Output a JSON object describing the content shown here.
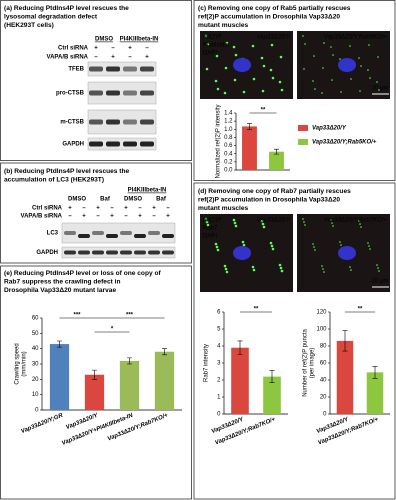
{
  "panels": {
    "a": {
      "title": [
        "(a) Reducing PtdIns4P level rescues the",
        "lysosomal degradation defect",
        "(HEK293T cells)"
      ],
      "columns": [
        "DMSO",
        "PI4KIIIbeta-IN"
      ],
      "rows": [
        {
          "label": "Ctrl siRNA",
          "signs": [
            "+",
            "–",
            "+",
            "–"
          ]
        },
        {
          "label": "VAPA/B siRNA",
          "signs": [
            "–",
            "+",
            "–",
            "+"
          ]
        }
      ],
      "blots": [
        "TFEB",
        "pro-CTSB",
        "m-CTSB",
        "GAPDH"
      ]
    },
    "b": {
      "title": [
        "(b) Reducing PtdIns4P level rescues the",
        "accumulation of LC3 (HEK293T)"
      ],
      "group": "PI4KIIIbeta-IN",
      "columns": [
        "DMSO",
        "Baf",
        "DMSO",
        "Baf"
      ],
      "rows": [
        {
          "label": "Ctrl siRNA",
          "signs": [
            "+",
            "–",
            "+",
            "–",
            "+",
            "–",
            "+",
            "–"
          ]
        },
        {
          "label": "VAPA/B siRNA",
          "signs": [
            "–",
            "+",
            "–",
            "+",
            "–",
            "+",
            "–",
            "+"
          ]
        }
      ],
      "blots": [
        "LC3",
        "GAPDH"
      ]
    },
    "c": {
      "title": [
        "(c) Removing one copy of Rab5 partially rescues",
        "ref(2)P accumulation in Drosophila Vap33Δ20",
        "mutant muscles"
      ],
      "stains": [
        "ref(2)P",
        "Phalloidin",
        "DAPI"
      ],
      "images": [
        "Vap33Δ20/Y",
        "Vap33Δ20/Y;Rab5KO/+"
      ],
      "scale": "20 μm"
    },
    "d": {
      "title": [
        "(d) Removing one copy of Rab7 partially rescues",
        "ref(2)P accumulation in Drosophila Vap33Δ20",
        "mutant muscles"
      ],
      "stains": [
        "ref(2)P",
        "Rab7",
        "DAPI"
      ],
      "images": [
        "Vap33Δ20/Y",
        "Vap33Δ20/Y;Rab7KO/+"
      ],
      "scale": "20 μm"
    },
    "e": {
      "title": [
        "(e) Reducing PtdIns4P level or loss of one copy of",
        "Rab7 suppress the crawling defect in",
        "Drosophila Vap33Δ20 mutant larvae"
      ]
    }
  },
  "chart_data": [
    {
      "type": "bar",
      "y_label": [
        "Normalized ref(2)P intensity"
      ],
      "categories": [
        "Vap33Δ20/Y",
        "Vap33Δ20/Y;Rab5KO/+"
      ],
      "values": [
        1.07,
        0.45
      ],
      "errors": [
        0.07,
        0.06
      ],
      "colors": [
        "#d9473f",
        "#8dc63f"
      ],
      "ylim": [
        0,
        1.4
      ],
      "yticks": [
        {
          "value": 0,
          "label": "0.0"
        },
        0.2,
        0.4,
        0.6,
        0.8,
        {
          "value": 1,
          "label": "1.0"
        },
        1.2,
        1.4
      ],
      "annotations": [
        "**"
      ],
      "legend": "right"
    },
    {
      "type": "bar",
      "y_label": [
        "Rab7 intensity"
      ],
      "categories": [
        "Vap33Δ20/Y",
        "Vap33Δ20/Y;Rab7KO/+"
      ],
      "values": [
        3.9,
        2.2
      ],
      "errors": [
        0.4,
        0.35
      ],
      "colors": [
        "#d9473f",
        "#8dc63f"
      ],
      "ylim": [
        0,
        6
      ],
      "yticks": [
        0,
        1,
        2,
        3,
        4,
        5,
        6
      ],
      "annotations": [
        "**"
      ]
    },
    {
      "type": "bar",
      "y_label": [
        "Number of ref(2)P puncta",
        "(per image)"
      ],
      "categories": [
        "Vap33Δ20/Y",
        "Vap33Δ20/Y;Rab7KO/+"
      ],
      "values": [
        86,
        49
      ],
      "errors": [
        12,
        7
      ],
      "colors": [
        "#d9473f",
        "#8dc63f"
      ],
      "ylim": [
        0,
        120
      ],
      "yticks": [
        0,
        20,
        40,
        60,
        80,
        100,
        120
      ],
      "annotations": [
        "**"
      ]
    },
    {
      "type": "bar",
      "y_label": [
        "Crawling speed",
        "(mm/min)"
      ],
      "categories": [
        "Vap33Δ20/Y;GR",
        "Vap33Δ20/Y",
        "Vap33Δ20/Y+PI4KIIIbeta-IN",
        "Vap33Δ20/Y;Rab7KO/+"
      ],
      "values": [
        43,
        23,
        32,
        38
      ],
      "errors": [
        2,
        3,
        2,
        2
      ],
      "colors": [
        "#4f81bd",
        "#d9473f",
        "#9bbb59",
        "#9bbb59"
      ],
      "ylim": [
        0,
        60
      ],
      "yticks": [
        0,
        10,
        20,
        30,
        40,
        50,
        60
      ],
      "annotations": [
        "***",
        "***",
        "*"
      ]
    }
  ]
}
